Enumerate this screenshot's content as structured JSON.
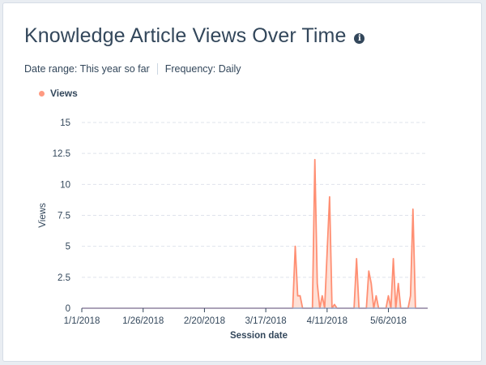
{
  "card": {
    "title": "Knowledge Article Views Over Time",
    "info_icon": "info-icon",
    "date_range_text": "Date range: This year so far",
    "frequency_text": "Frequency: Daily"
  },
  "colors": {
    "series": "#ff8f73",
    "series_fill": "#fdd5c8",
    "grid": "#dfe3eb",
    "axis": "#33475b",
    "baseline": "#8fa0c4"
  },
  "chart_data": {
    "type": "area",
    "xlabel": "Session date",
    "ylabel": "Views",
    "ylim": [
      0,
      15
    ],
    "yticks": [
      "0",
      "2.5",
      "5",
      "7.5",
      "10",
      "12.5",
      "15"
    ],
    "ytick_values": [
      0,
      2.5,
      5,
      7.5,
      10,
      12.5,
      15
    ],
    "xticks": [
      "1/1/2018",
      "1/26/2018",
      "2/20/2018",
      "3/17/2018",
      "4/11/2018",
      "5/6/2018"
    ],
    "xtick_days": [
      0,
      25,
      50,
      75,
      100,
      125
    ],
    "x_domain_days": [
      0,
      141
    ],
    "grid": true,
    "legend_position": "top-left",
    "series": [
      {
        "name": "Views",
        "points": [
          [
            86,
            0
          ],
          [
            87,
            5
          ],
          [
            88,
            1
          ],
          [
            89,
            1
          ],
          [
            90,
            0
          ],
          [
            94,
            0
          ],
          [
            95,
            12
          ],
          [
            96,
            2
          ],
          [
            97,
            0
          ],
          [
            98,
            1
          ],
          [
            99,
            0
          ],
          [
            101,
            9
          ],
          [
            102,
            0
          ],
          [
            103,
            0.3
          ],
          [
            104,
            0
          ],
          [
            111,
            0
          ],
          [
            112,
            4
          ],
          [
            113,
            0
          ],
          [
            116,
            0
          ],
          [
            117,
            3
          ],
          [
            118,
            2
          ],
          [
            119,
            0
          ],
          [
            120,
            1
          ],
          [
            121,
            0
          ],
          [
            124,
            0
          ],
          [
            125,
            1
          ],
          [
            126,
            0
          ],
          [
            127,
            4
          ],
          [
            128,
            0
          ],
          [
            129,
            2
          ],
          [
            130,
            0
          ],
          [
            133,
            0
          ],
          [
            134,
            1
          ],
          [
            135,
            8
          ],
          [
            136,
            0
          ]
        ]
      }
    ]
  }
}
